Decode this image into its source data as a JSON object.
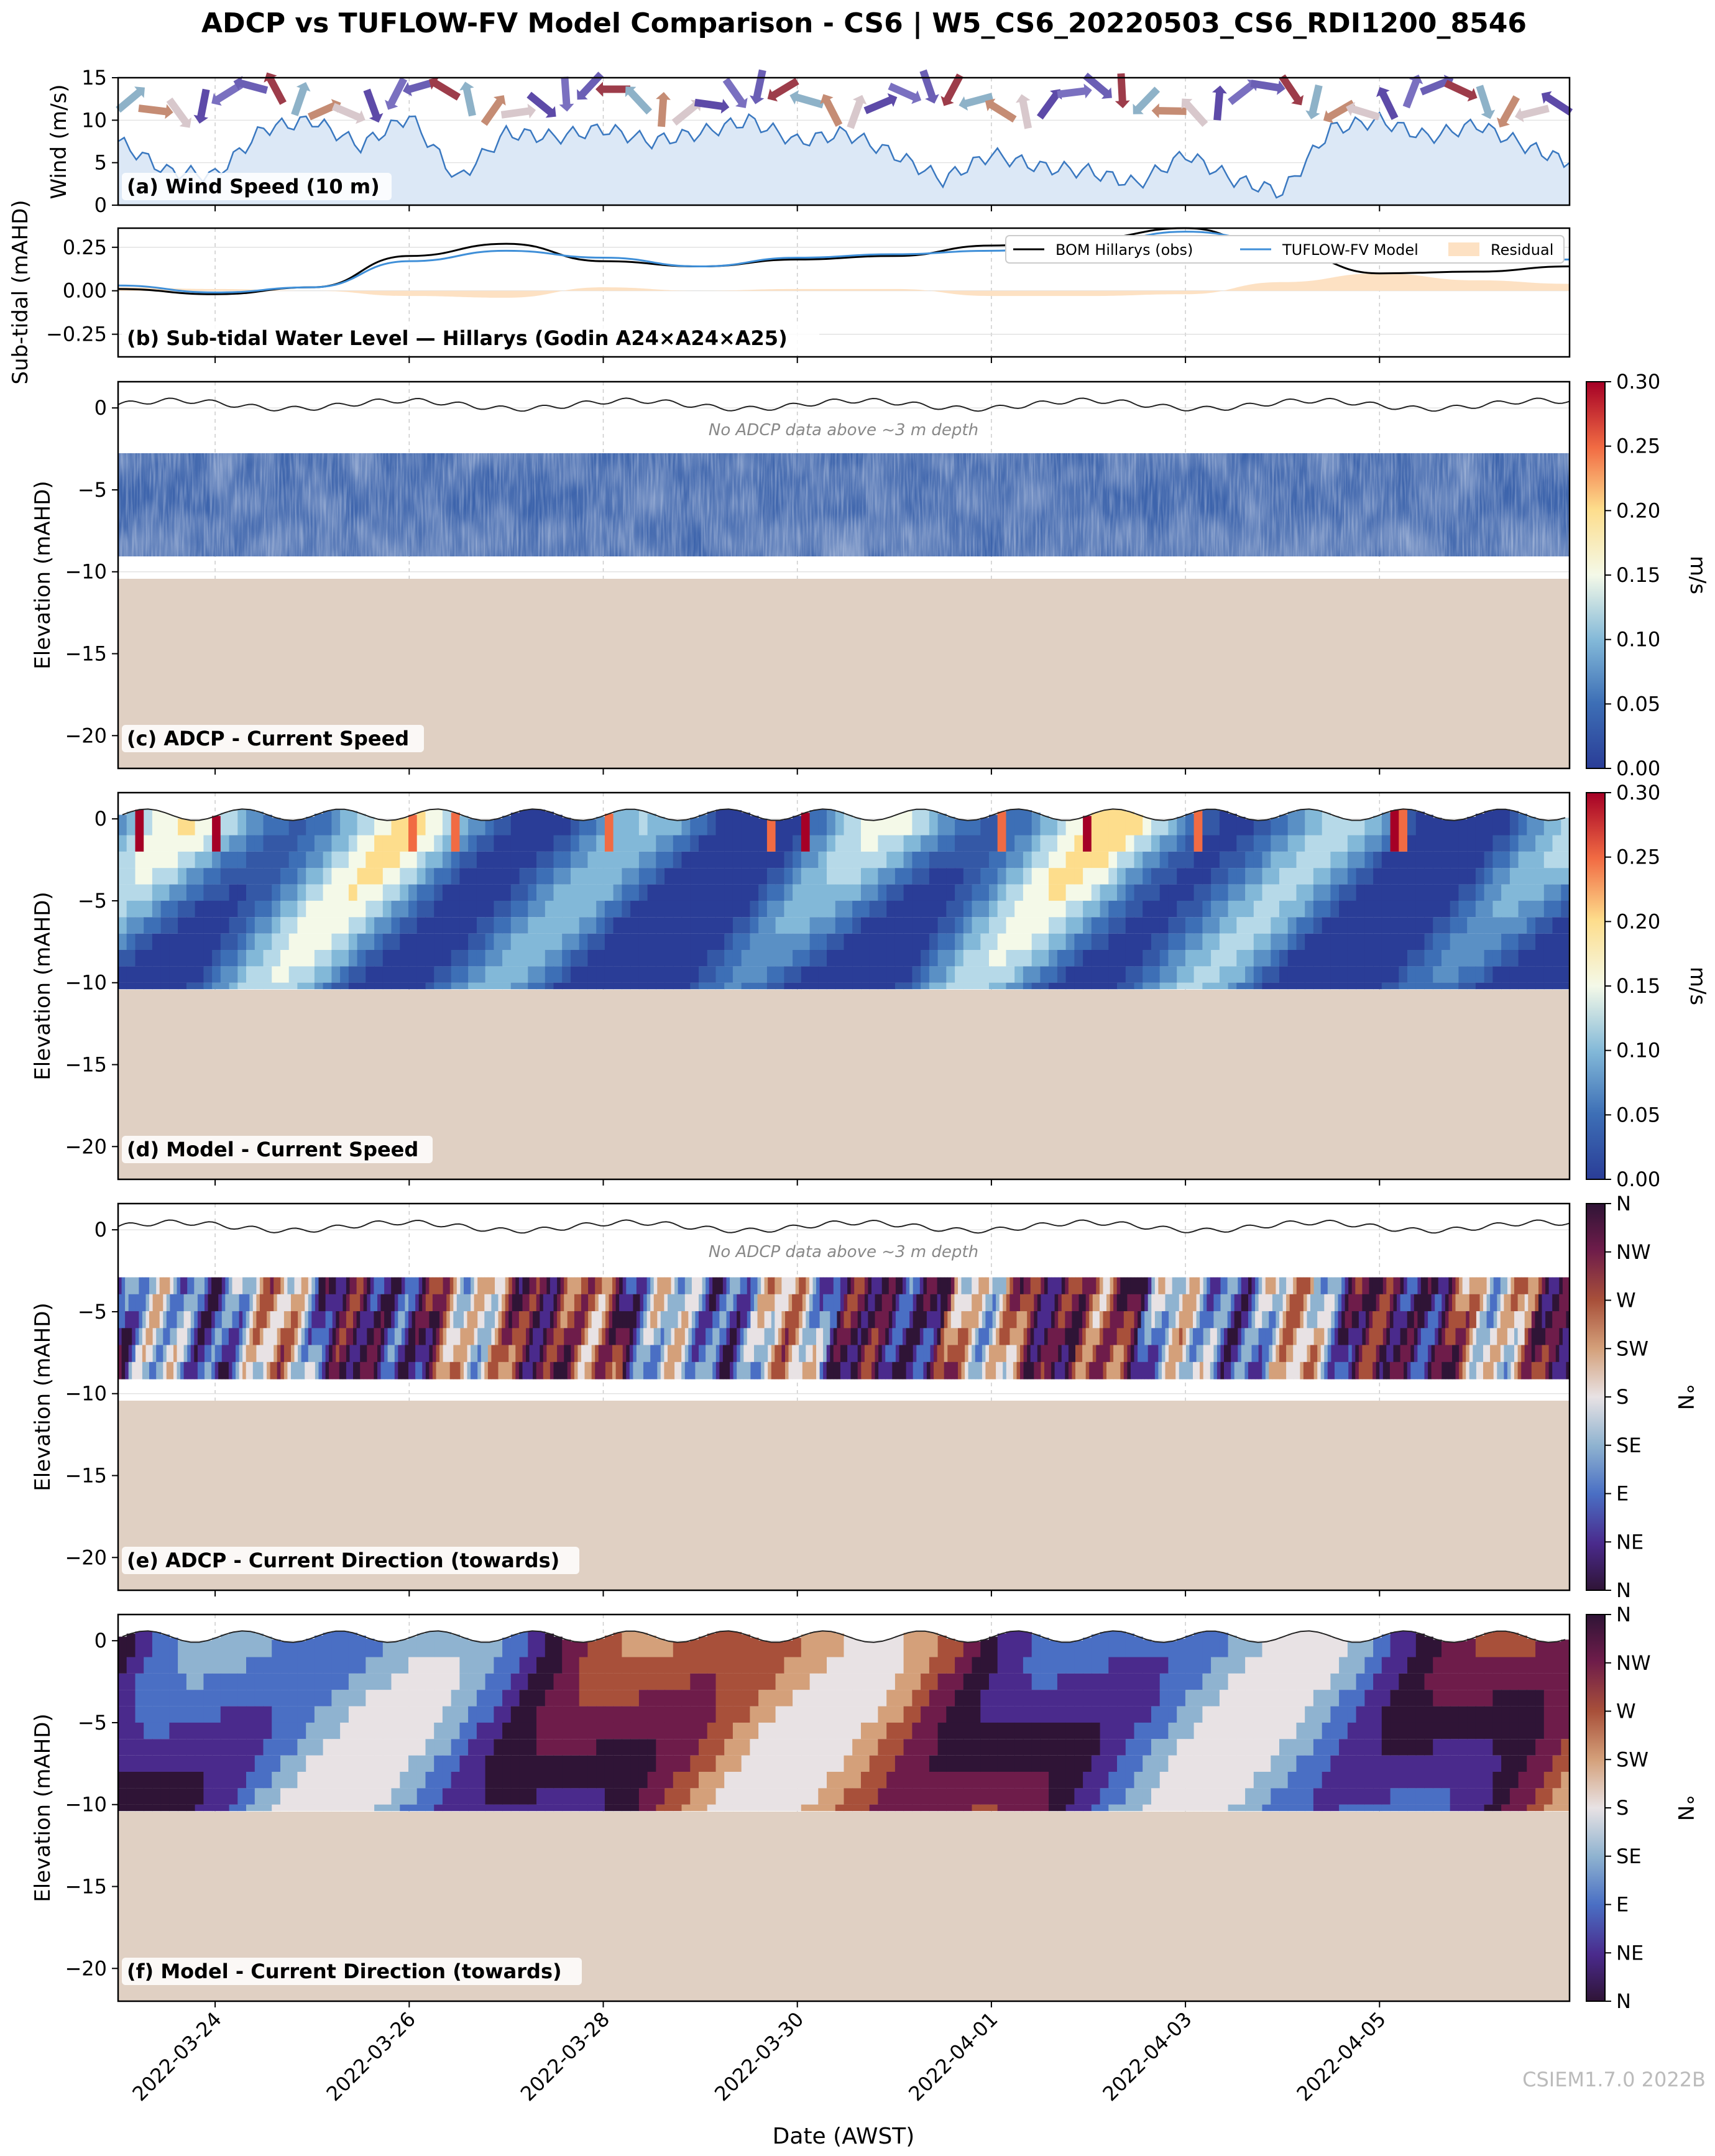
{
  "figure": {
    "title": "ADCP vs TUFLOW-FV Model Comparison - CS6 | W5_CS6_20220503_CS6_RDI1200_8546",
    "xlabel": "Date (AWST)",
    "watermark": "CSIEM1.7.0 2022B",
    "x_range": [
      "2022-03-23",
      "2022-04-06T23:00"
    ],
    "x_ticks": [
      "2022-03-24",
      "2022-03-26",
      "2022-03-28",
      "2022-03-30",
      "2022-04-01",
      "2022-04-03",
      "2022-04-05"
    ]
  },
  "panels": {
    "a": {
      "label": "(a) Wind Speed (10 m)",
      "ylabel": "Wind (m/s)",
      "yticks": [
        "0",
        "5",
        "10",
        "15"
      ]
    },
    "b": {
      "label": "(b) Sub-tidal Water Level — Hillarys (Godin A24×A24×A25)",
      "ylabel": "Sub-tidal (mAHD)",
      "yticks": [
        "−0.25",
        "0.00",
        "0.25"
      ]
    },
    "c": {
      "label": "(c) ADCP - Current Speed",
      "ylabel": "Elevation (mAHD)",
      "note": "No ADCP data above ~3 m depth",
      "yticks": [
        "0",
        "−5",
        "−10",
        "−15",
        "−20"
      ]
    },
    "d": {
      "label": "(d) Model - Current Speed",
      "ylabel": "Elevation (mAHD)",
      "yticks": [
        "0",
        "−5",
        "−10",
        "−15",
        "−20"
      ]
    },
    "e": {
      "label": "(e) ADCP - Current Direction (towards)",
      "ylabel": "Elevation (mAHD)",
      "note": "No ADCP data above ~3 m depth",
      "yticks": [
        "0",
        "−5",
        "−10",
        "−15",
        "−20"
      ]
    },
    "f": {
      "label": "(f) Model - Current Direction (towards)",
      "ylabel": "Elevation (mAHD)",
      "yticks": [
        "0",
        "−5",
        "−10",
        "−15",
        "−20"
      ]
    }
  },
  "colorbars": {
    "speed": {
      "label": "m/s",
      "ticks": [
        "0.00",
        "0.05",
        "0.10",
        "0.15",
        "0.20",
        "0.25",
        "0.30"
      ]
    },
    "direction": {
      "label": "°N",
      "ticks": [
        "N",
        "NE",
        "E",
        "SE",
        "S",
        "SW",
        "W",
        "NW",
        "N"
      ]
    }
  },
  "colors": {
    "wind_fill": "#dce8f6",
    "wind_line": "#3a78c0",
    "obs_line": "#000000",
    "model_line": "#3f8fd8",
    "residual_fill": "#fde1c3",
    "seabed": "#e0d0c3"
  },
  "chart_data": [
    {
      "type": "area",
      "title": "(a) Wind Speed (10 m)",
      "ylabel": "Wind (m/s)",
      "ylim": [
        0,
        15
      ],
      "x": [
        "2022-03-23T00",
        "2022-03-23T12",
        "2022-03-24T00",
        "2022-03-24T12",
        "2022-03-25T00",
        "2022-03-25T12",
        "2022-03-26T00",
        "2022-03-26T12",
        "2022-03-27T00",
        "2022-03-27T12",
        "2022-03-28T00",
        "2022-03-28T12",
        "2022-03-29T00",
        "2022-03-29T12",
        "2022-03-30T00",
        "2022-03-30T12",
        "2022-03-31T00",
        "2022-03-31T12",
        "2022-04-01T00",
        "2022-04-01T12",
        "2022-04-02T00",
        "2022-04-02T12",
        "2022-04-03T00",
        "2022-04-03T12",
        "2022-04-04T00",
        "2022-04-04T12",
        "2022-04-05T00",
        "2022-04-05T12",
        "2022-04-06T00",
        "2022-04-06T12",
        "2022-04-06T23"
      ],
      "series": [
        {
          "values": [
            7.5,
            4.0,
            3.5,
            9.0,
            10.0,
            7.0,
            10.5,
            3.0,
            8.5,
            8.0,
            9.0,
            7.5,
            8.5,
            10.0,
            7.5,
            8.5,
            6.0,
            3.0,
            6.0,
            4.5,
            4.0,
            2.5,
            6.0,
            3.0,
            1.5,
            9.0,
            10.0,
            8.0,
            9.5,
            7.0,
            5.0
          ]
        }
      ]
    },
    {
      "type": "line",
      "title": "(b) Sub-tidal Water Level — Hillarys (Godin A24×A24×A25)",
      "ylabel": "Sub-tidal (mAHD)",
      "ylim": [
        -0.38,
        0.36
      ],
      "x": [
        "2022-03-23",
        "2022-03-24",
        "2022-03-25",
        "2022-03-26",
        "2022-03-27",
        "2022-03-28",
        "2022-03-29",
        "2022-03-30",
        "2022-03-31",
        "2022-04-01",
        "2022-04-02",
        "2022-04-03",
        "2022-04-04",
        "2022-04-05",
        "2022-04-06",
        "2022-04-06T23"
      ],
      "series": [
        {
          "name": "BOM Hillarys (obs)",
          "values": [
            0.01,
            -0.02,
            0.02,
            0.2,
            0.27,
            0.17,
            0.14,
            0.18,
            0.2,
            0.26,
            0.3,
            0.36,
            0.23,
            0.1,
            0.11,
            0.14
          ]
        },
        {
          "name": "TUFLOW-FV Model",
          "values": [
            0.03,
            -0.01,
            0.02,
            0.17,
            0.23,
            0.19,
            0.14,
            0.19,
            0.21,
            0.23,
            0.27,
            0.34,
            0.28,
            0.2,
            0.17,
            0.18
          ]
        },
        {
          "name": "Residual",
          "values": [
            0.02,
            0.01,
            0.0,
            -0.03,
            -0.04,
            0.02,
            0.0,
            0.01,
            0.01,
            -0.03,
            -0.03,
            -0.02,
            0.05,
            0.1,
            0.06,
            0.04
          ]
        }
      ]
    },
    {
      "type": "heatmap",
      "title": "(c) ADCP - Current Speed",
      "ylabel": "Elevation (mAHD)",
      "ylim": [
        -22,
        1.6
      ],
      "colorbar": {
        "label": "m/s",
        "range": [
          0,
          0.3
        ]
      },
      "data_elevation_range": [
        -9.1,
        -2.9
      ],
      "seabed_elevation": -10.5
    },
    {
      "type": "heatmap",
      "title": "(d) Model - Current Speed",
      "ylabel": "Elevation (mAHD)",
      "ylim": [
        -22,
        1.6
      ],
      "colorbar": {
        "label": "m/s",
        "range": [
          0,
          0.3
        ]
      },
      "data_elevation_range": [
        -10.4,
        0.5
      ],
      "seabed_elevation": -10.5
    },
    {
      "type": "heatmap",
      "title": "(e) ADCP - Current Direction (towards)",
      "ylabel": "Elevation (mAHD)",
      "ylim": [
        -22,
        1.6
      ],
      "colorbar": {
        "label": "°N",
        "range": [
          0,
          360
        ]
      },
      "data_elevation_range": [
        -9.1,
        -2.9
      ],
      "seabed_elevation": -10.5
    },
    {
      "type": "heatmap",
      "title": "(f) Model - Current Direction (towards)",
      "ylabel": "Elevation (mAHD)",
      "ylim": [
        -22,
        1.6
      ],
      "colorbar": {
        "label": "°N",
        "range": [
          0,
          360
        ]
      },
      "data_elevation_range": [
        -10.4,
        0.5
      ],
      "seabed_elevation": -10.5
    }
  ]
}
